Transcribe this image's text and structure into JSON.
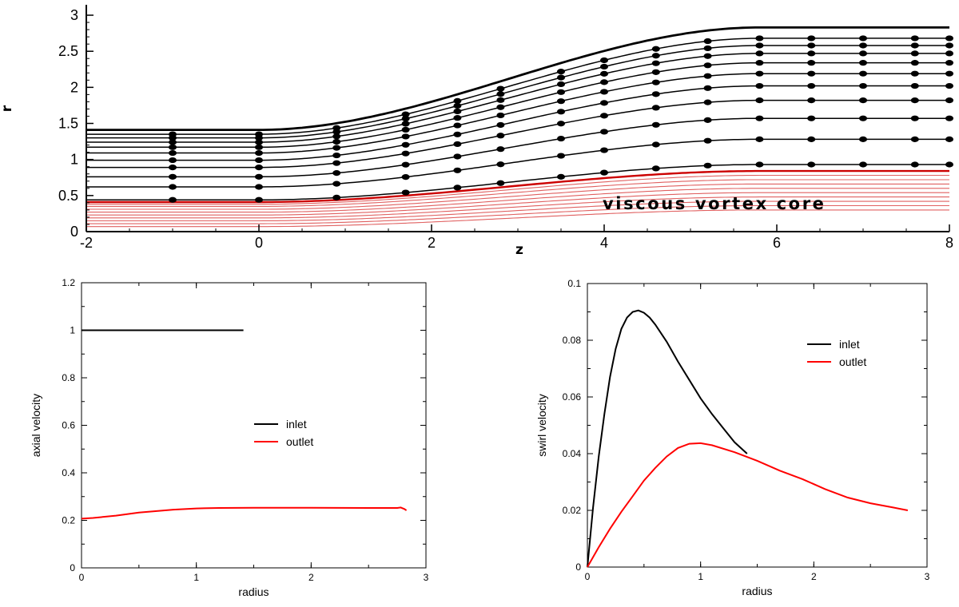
{
  "chart_data": [
    {
      "type": "line",
      "panel": "streamline-plot",
      "xlabel": "z",
      "ylabel": "r",
      "xlim": [
        -2,
        8
      ],
      "ylim": [
        0,
        3.1
      ],
      "x_ticks": [
        "-2",
        "0",
        "2",
        "4",
        "6",
        "8"
      ],
      "y_ticks": [
        "0",
        "0.5",
        "1",
        "1.5",
        "2",
        "2.5",
        "3"
      ],
      "annotation": "viscous vortex core",
      "colors": {
        "streamline": "#000000",
        "core": "#cc0000",
        "core_light": "#e06060"
      },
      "wall": {
        "inlet_r": 1.41,
        "outlet_r": 2.83,
        "ramp_start_z": 0,
        "ramp_end_z": 5.8
      },
      "outer_streamlines_inlet_r": [
        0.44,
        0.62,
        0.76,
        0.89,
        0.99,
        1.09,
        1.17,
        1.24,
        1.3,
        1.35
      ],
      "outer_streamlines_outlet_r": [
        0.93,
        1.28,
        1.57,
        1.82,
        2.02,
        2.19,
        2.34,
        2.47,
        2.58,
        2.68
      ],
      "core_streamlines_inlet_r": [
        0.07,
        0.11,
        0.15,
        0.19,
        0.23,
        0.27,
        0.31,
        0.35,
        0.38,
        0.41
      ],
      "core_streamlines_outlet_r": [
        0.3,
        0.36,
        0.42,
        0.48,
        0.54,
        0.6,
        0.66,
        0.72,
        0.78,
        0.84
      ],
      "marker_stations_z": [
        -1,
        0,
        0.9,
        1.7,
        2.3,
        2.8,
        3.5,
        4.0,
        4.6,
        5.2,
        5.8,
        6.4,
        7.0,
        7.6,
        8.0
      ]
    },
    {
      "type": "line",
      "panel": "axial-velocity",
      "xlabel": "radius",
      "ylabel": "axial velocity",
      "xlim": [
        0,
        3
      ],
      "ylim": [
        0,
        1.2
      ],
      "x_ticks": [
        "0",
        "1",
        "2",
        "3"
      ],
      "y_ticks": [
        "0",
        "0.2",
        "0.4",
        "0.6",
        "0.8",
        "1",
        "1.2"
      ],
      "legend_position": "center-right",
      "series": [
        {
          "name": "inlet",
          "color": "#000000",
          "x": [
            0,
            0.5,
            1.0,
            1.41
          ],
          "y": [
            1.0,
            1.0,
            1.0,
            1.0
          ]
        },
        {
          "name": "outlet",
          "color": "#ff0000",
          "x": [
            0,
            0.1,
            0.3,
            0.5,
            0.8,
            1.0,
            1.2,
            1.5,
            2.0,
            2.5,
            2.75,
            2.78,
            2.81,
            2.83
          ],
          "y": [
            0.207,
            0.21,
            0.22,
            0.233,
            0.245,
            0.25,
            0.252,
            0.253,
            0.253,
            0.252,
            0.252,
            0.254,
            0.248,
            0.242
          ]
        }
      ]
    },
    {
      "type": "line",
      "panel": "swirl-velocity",
      "xlabel": "radius",
      "ylabel": "swirl velocity",
      "xlim": [
        0,
        3
      ],
      "ylim": [
        0,
        0.1
      ],
      "x_ticks": [
        "0",
        "1",
        "2",
        "3"
      ],
      "y_ticks": [
        "0",
        "0.02",
        "0.04",
        "0.06",
        "0.08",
        "0.1"
      ],
      "legend_position": "top-right",
      "series": [
        {
          "name": "inlet",
          "color": "#000000",
          "x": [
            0,
            0.05,
            0.1,
            0.15,
            0.2,
            0.25,
            0.3,
            0.35,
            0.4,
            0.45,
            0.5,
            0.55,
            0.6,
            0.7,
            0.8,
            0.9,
            1.0,
            1.1,
            1.2,
            1.3,
            1.41
          ],
          "y": [
            0,
            0.021,
            0.039,
            0.054,
            0.067,
            0.077,
            0.084,
            0.088,
            0.09,
            0.0905,
            0.0897,
            0.088,
            0.0855,
            0.0795,
            0.0725,
            0.066,
            0.0595,
            0.054,
            0.049,
            0.044,
            0.04
          ]
        },
        {
          "name": "outlet",
          "color": "#ff0000",
          "x": [
            0,
            0.1,
            0.2,
            0.3,
            0.4,
            0.5,
            0.6,
            0.7,
            0.8,
            0.9,
            1.0,
            1.1,
            1.3,
            1.5,
            1.7,
            1.9,
            2.1,
            2.3,
            2.5,
            2.7,
            2.83
          ],
          "y": [
            0,
            0.007,
            0.0135,
            0.0195,
            0.025,
            0.0305,
            0.035,
            0.039,
            0.042,
            0.0435,
            0.0437,
            0.043,
            0.0405,
            0.0375,
            0.034,
            0.031,
            0.0275,
            0.0245,
            0.0225,
            0.021,
            0.02
          ]
        }
      ]
    }
  ]
}
